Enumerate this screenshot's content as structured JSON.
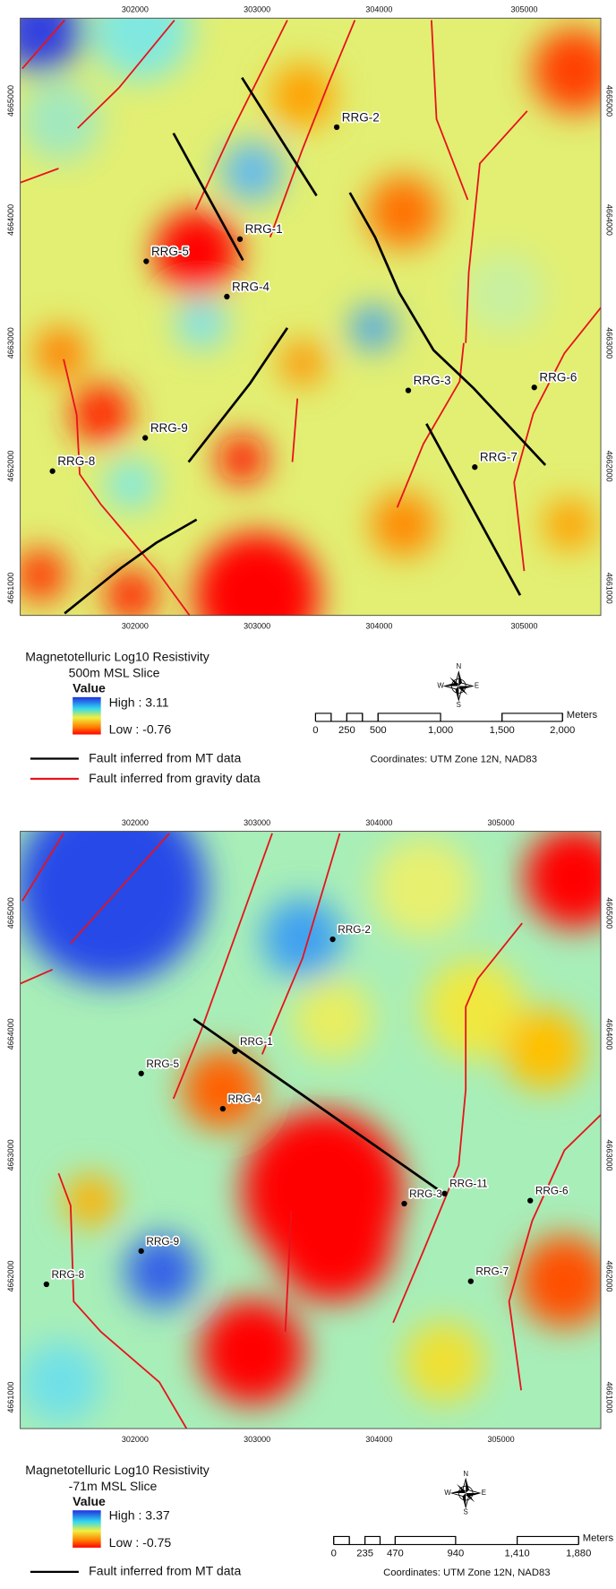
{
  "maps": [
    {
      "title": "Magnetotelluric Log10 Resistivity",
      "subtitle": "500m MSL Slice",
      "legend_title": "Value",
      "high": "High : 3.11",
      "low": "Low : -0.76",
      "x_ticks": [
        "302000",
        "303000",
        "304000",
        "305000"
      ],
      "y_ticks": [
        "4665000",
        "4664000",
        "4663000",
        "4662000",
        "4661000"
      ],
      "wells": [
        "RRG-1",
        "RRG-2",
        "RRG-3",
        "RRG-4",
        "RRG-5",
        "RRG-6",
        "RRG-7",
        "RRG-8",
        "RRG-9"
      ],
      "legend_items": [
        "Fault inferred from MT data",
        "Fault inferred from gravity data"
      ],
      "scale_labels": [
        "0",
        "250",
        "500",
        "1,000",
        "1,500",
        "2,000"
      ],
      "scale_unit": "Meters",
      "coordinates": "Coordinates: UTM Zone 12N, NAD83",
      "compass": [
        "N",
        "E",
        "S",
        "W"
      ]
    },
    {
      "title": "Magnetotelluric Log10 Resistivity",
      "subtitle": "-71m MSL Slice",
      "legend_title": "Value",
      "high": "High : 3.37",
      "low": "Low : -0.75",
      "x_ticks": [
        "302000",
        "303000",
        "304000",
        "305000"
      ],
      "y_ticks": [
        "4665000",
        "4664000",
        "4663000",
        "4662000",
        "4661000"
      ],
      "wells": [
        "RRG-1",
        "RRG-2",
        "RRG-3",
        "RRG-4",
        "RRG-5",
        "RRG-6",
        "RRG-7",
        "RRG-8",
        "RRG-9",
        "RRG-11"
      ],
      "legend_items": [
        "Fault inferred from MT data"
      ],
      "scale_labels": [
        "0",
        "235",
        "470",
        "940",
        "1,410",
        "1,880"
      ],
      "scale_unit": "Meters",
      "coordinates": "Coordinates: UTM Zone 12N, NAD83",
      "compass": [
        "N",
        "E",
        "S",
        "W"
      ]
    }
  ]
}
